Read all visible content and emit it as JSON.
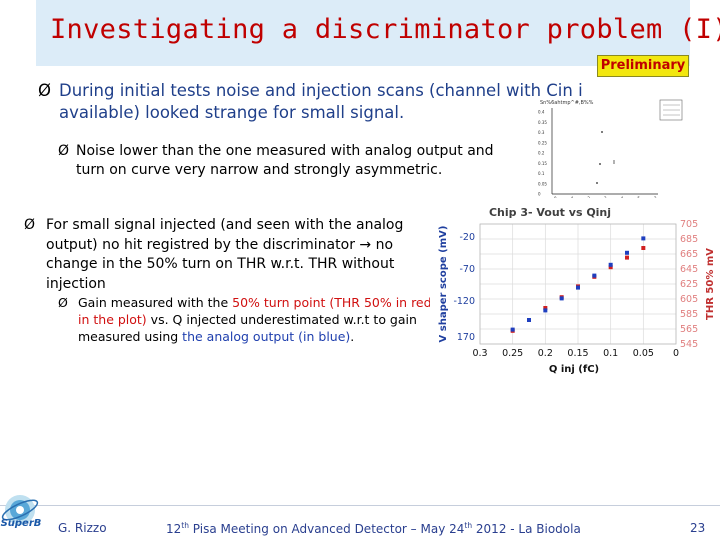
{
  "slide": {
    "title": "Investigating a discriminator problem (I)",
    "badge": "Preliminary",
    "bullet1": "During initial tests noise and injection scans (channel with Cin i available) looked strange for small signal.",
    "bullet2": "Noise lower than the one measured with analog output and turn on curve very narrow and strongly asymmetric.",
    "bullet3": "For small signal injected (and seen with the analog output) no hit registred by the discriminator → no change in the 50% turn on THR w.r.t. THR without injection",
    "bullet4": {
      "part1": "Gain measured with the ",
      "red1": "50% turn point (THR 50% in red in the plot)",
      "part2": " vs. Q injected underestimated w.r.t to gain measured using ",
      "blue1": "the analog output (in blue)",
      "part3": "."
    },
    "bullet_symbol": "Ø"
  },
  "small_plot": {
    "title": "Sn%6ahtmp^#,B%%",
    "tick_labels": [
      "0.4",
      "0.35",
      "0.3",
      "0.25",
      "0.2",
      "0.15",
      "0.1",
      "0.05",
      "0"
    ],
    "x_tick_labels": [
      "0",
      "4",
      "2",
      "3",
      "4",
      "5",
      "2"
    ]
  },
  "chart_data": {
    "type": "scatter",
    "title": "Chip 3- Vout vs Qinj",
    "xlabel": "Q inj  (fC)",
    "ylabel_left": "V shaper scope (mV)",
    "ylabel_right": "THR 50% mV",
    "x_ticks": [
      "0.3",
      "0.25",
      "0.2",
      "0.15",
      "0.1",
      "0.05",
      "0"
    ],
    "y_left_ticks": [
      "-20",
      "-70",
      "-120",
      "170"
    ],
    "y_right_ticks": [
      "705",
      "685",
      "665",
      "645",
      "625",
      "605",
      "585",
      "565",
      "545"
    ],
    "xlim": [
      0.3,
      0
    ],
    "series": [
      {
        "color": "#d02020",
        "points": [
          [
            0.05,
            0.8
          ],
          [
            0.075,
            0.72
          ],
          [
            0.1,
            0.64
          ],
          [
            0.125,
            0.56
          ],
          [
            0.15,
            0.48
          ],
          [
            0.175,
            0.39
          ],
          [
            0.2,
            0.3
          ],
          [
            0.225,
            0.2
          ],
          [
            0.25,
            0.11
          ]
        ]
      },
      {
        "color": "#1f3fbf",
        "points": [
          [
            0.05,
            0.88
          ],
          [
            0.075,
            0.76
          ],
          [
            0.1,
            0.66
          ],
          [
            0.125,
            0.57
          ],
          [
            0.15,
            0.47
          ],
          [
            0.175,
            0.38
          ],
          [
            0.2,
            0.28
          ],
          [
            0.225,
            0.2
          ],
          [
            0.25,
            0.12
          ]
        ]
      }
    ]
  },
  "footer": {
    "author": "G. Rizzo",
    "conf_pre": "12",
    "conf_sup1": "th",
    "conf_mid": " Pisa Meeting on Advanced Detector – May 24",
    "conf_sup2": "th",
    "conf_post": " 2012 - La Biodola",
    "page": "23",
    "logo_text": "SuperB"
  }
}
